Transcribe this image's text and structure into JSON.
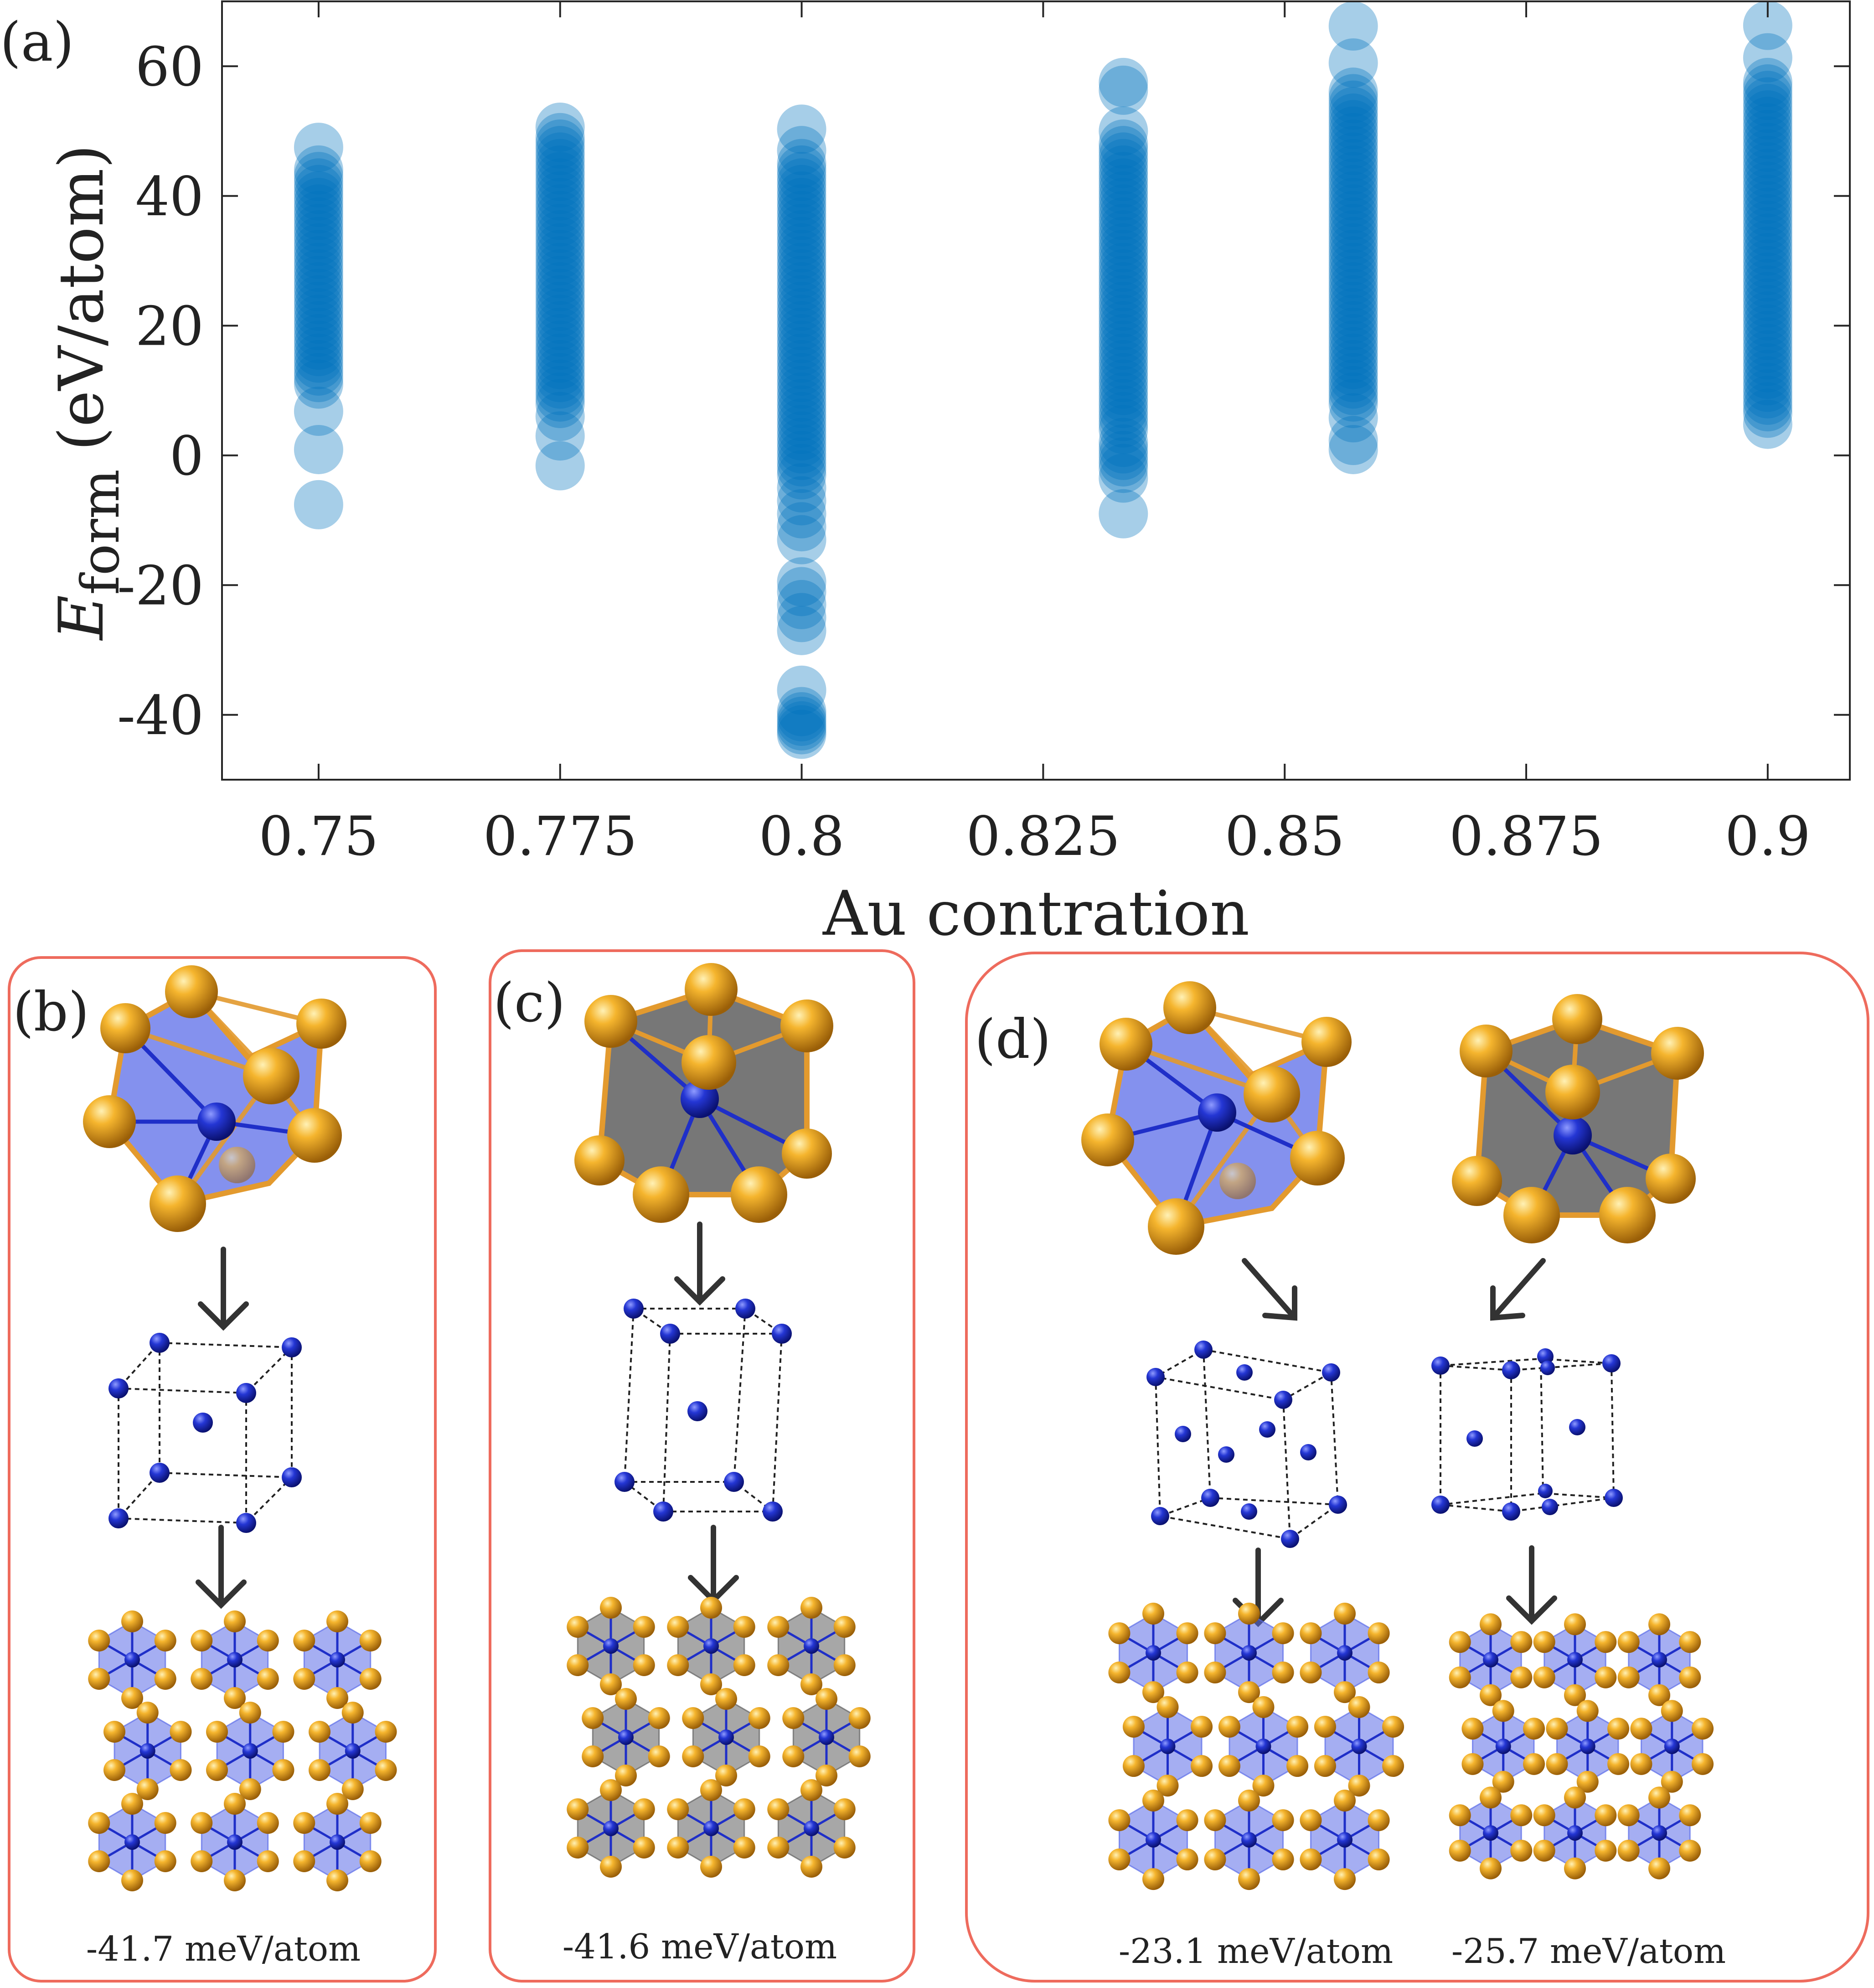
{
  "colors": {
    "point": "#0072BD",
    "frame": "#EE6B5D",
    "au": "#F0A526",
    "au_bond": "#E39A2E",
    "x_atom": "#1F2FC8",
    "poly_blue": "#5B6CE8",
    "poly_gray": "#5F5F5F",
    "axis": "#262626"
  },
  "panel_a_label": "(a)",
  "chart_data": {
    "type": "scatter",
    "xlabel": "Au contration",
    "ylabel_symbol": "E",
    "ylabel_subscript": "form",
    "ylabel_unit": "(eV/atom)",
    "xlim": [
      0.74,
      0.9085
    ],
    "ylim": [
      -50,
      70
    ],
    "xticks": [
      0.75,
      0.775,
      0.8,
      0.825,
      0.85,
      0.875,
      0.9
    ],
    "xtick_labels": [
      "0.75",
      "0.775",
      "0.8",
      "0.825",
      "0.85",
      "0.875",
      "0.9"
    ],
    "yticks": [
      -40,
      -20,
      0,
      20,
      40,
      60
    ],
    "ytick_labels": [
      "-40",
      "-20",
      "0",
      "20",
      "40",
      "60"
    ],
    "grid": false,
    "marker_alpha": 0.35,
    "series": [
      {
        "x": 0.75,
        "y": [
          -7.6,
          0.9,
          6.8,
          11,
          12,
          13,
          14,
          15,
          16,
          17,
          18,
          19,
          20,
          21,
          22,
          23,
          24,
          25,
          26,
          27,
          28,
          29,
          30,
          31,
          32,
          33,
          34,
          35,
          36,
          37,
          38,
          39,
          40,
          41,
          42,
          43,
          44,
          47.5
        ]
      },
      {
        "x": 0.775,
        "y": [
          -1.6,
          3.0,
          6,
          8,
          9,
          10,
          11,
          12,
          13,
          14,
          15,
          16,
          17,
          18,
          19,
          20,
          21,
          22,
          23,
          24,
          25,
          26,
          27,
          28,
          29,
          30,
          31,
          32,
          33,
          34,
          35,
          36,
          37,
          38,
          39,
          40,
          41,
          42,
          43,
          44,
          45,
          46,
          47,
          48,
          49,
          50.6
        ]
      },
      {
        "x": 0.8,
        "y": [
          -43,
          -42.3,
          -41.7,
          -41,
          -40.3,
          -39.5,
          -36.2,
          -27,
          -25,
          -23,
          -21,
          -19.5,
          -13,
          -11,
          -9,
          -7,
          -5,
          -3,
          -2,
          -1,
          0,
          1,
          2,
          3,
          4,
          5,
          6,
          7,
          8,
          9,
          10,
          11,
          12,
          13,
          14,
          15,
          16,
          17,
          18,
          19,
          20,
          21,
          22,
          23,
          24,
          25,
          26,
          27,
          28,
          29,
          30,
          31,
          32,
          33,
          34,
          35,
          36,
          37,
          38,
          39,
          40,
          41,
          42,
          43,
          44,
          45,
          47,
          50.3
        ]
      },
      {
        "x": 0.8333,
        "y": [
          -9,
          -3.5,
          -2,
          -1,
          0,
          1,
          2,
          4,
          5,
          6,
          7,
          8,
          9,
          10,
          11,
          12,
          13,
          14,
          15,
          16,
          17,
          18,
          19,
          20,
          21,
          22,
          23,
          24,
          25,
          26,
          27,
          28,
          29,
          30,
          31,
          32,
          33,
          34,
          35,
          36,
          37,
          38,
          39,
          40,
          41,
          42,
          43,
          44,
          45,
          46,
          47,
          48,
          50,
          56.3,
          57.5
        ]
      },
      {
        "x": 0.8571,
        "y": [
          0.9,
          2.3,
          5.8,
          8,
          9,
          10,
          11,
          12,
          13,
          14,
          15,
          16,
          17,
          18,
          19,
          20,
          21,
          22,
          23,
          24,
          25,
          26,
          27,
          28,
          29,
          30,
          31,
          32,
          33,
          34,
          35,
          36,
          37,
          38,
          39,
          40,
          41,
          42,
          43,
          44,
          45,
          46,
          47,
          48,
          49,
          50,
          51,
          52,
          53,
          54,
          55,
          56,
          60.5,
          66.2
        ]
      },
      {
        "x": 0.9,
        "y": [
          4.8,
          6.5,
          7.5,
          8.5,
          9.5,
          10.5,
          11.5,
          12.5,
          13.5,
          14.5,
          15.5,
          16.5,
          17.5,
          18.5,
          19.5,
          20.5,
          21.5,
          22.5,
          23.5,
          24.5,
          25.5,
          26.5,
          27.5,
          28.5,
          29.5,
          30.5,
          31.5,
          32.5,
          33.5,
          34.5,
          35.5,
          36.5,
          37.5,
          38.5,
          39.5,
          40.5,
          41.5,
          42.5,
          43.5,
          44.5,
          45.5,
          46.5,
          47.5,
          48.5,
          49.5,
          50.5,
          51.5,
          52.5,
          53.5,
          54.5,
          55.5,
          56.5,
          57.5,
          61.3,
          66.3
        ]
      }
    ]
  },
  "panels": {
    "b": {
      "label": "(b)",
      "energy": "-41.7 meV/atom"
    },
    "c": {
      "label": "(c)",
      "energy": "-41.6 meV/atom"
    },
    "d": {
      "label": "(d)",
      "energy_left": "-23.1 meV/atom",
      "energy_right": "-25.7 meV/atom"
    }
  }
}
